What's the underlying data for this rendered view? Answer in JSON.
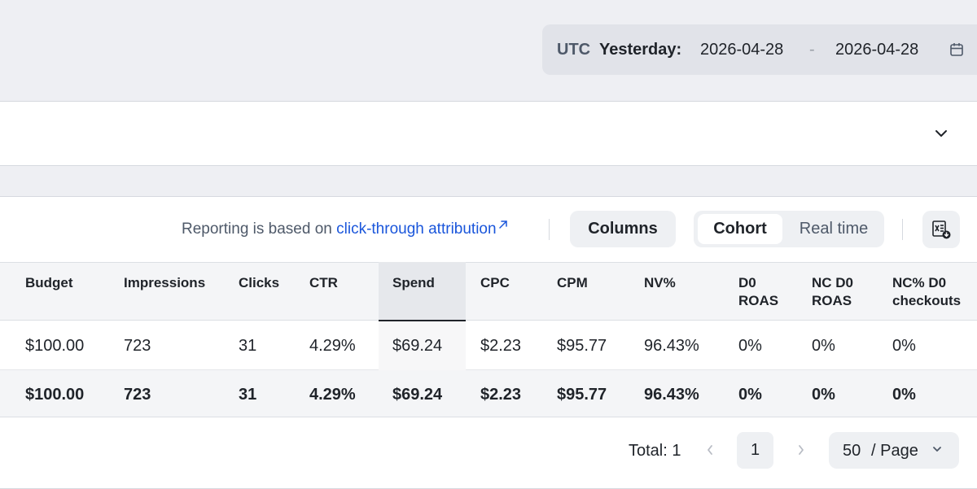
{
  "date_range": {
    "timezone": "UTC",
    "preset": "Yesterday:",
    "start": "2026-04-28",
    "separator": "-",
    "end": "2026-04-28",
    "icon": "calendar-icon"
  },
  "filter_panel": {
    "toggle_icon": "chevron-down-icon"
  },
  "toolbar": {
    "attribution_prefix": "Reporting is based on ",
    "attribution_link": "click-through attribution",
    "attribution_link_icon": "external-link-icon",
    "columns_label": "Columns",
    "view_modes": [
      "Cohort",
      "Real time"
    ],
    "active_view": "Cohort",
    "export_icon": "excel-export-icon"
  },
  "table": {
    "columns": [
      "Budget",
      "Impressions",
      "Clicks",
      "CTR",
      "Spend",
      "CPC",
      "CPM",
      "NV%",
      "D0\nROAS",
      "NC D0\nROAS",
      "NC% D0\ncheckouts"
    ],
    "sorted_column": "Spend",
    "rows": [
      [
        "$100.00",
        "723",
        "31",
        "4.29%",
        "$69.24",
        "$2.23",
        "$95.77",
        "96.43%",
        "0%",
        "0%",
        "0%"
      ]
    ],
    "total_row": [
      "$100.00",
      "723",
      "31",
      "4.29%",
      "$69.24",
      "$2.23",
      "$95.77",
      "96.43%",
      "0%",
      "0%",
      "0%"
    ]
  },
  "pagination": {
    "total_label": "Total: 1",
    "current_page": "1",
    "page_size": "50",
    "page_size_unit": "/ Page",
    "prev_icon": "chevron-left-icon",
    "next_icon": "chevron-right-icon"
  },
  "colors": {
    "background": "#eeeff3",
    "link": "#1a56db",
    "text": "#1f2329",
    "muted": "#4e5969"
  }
}
